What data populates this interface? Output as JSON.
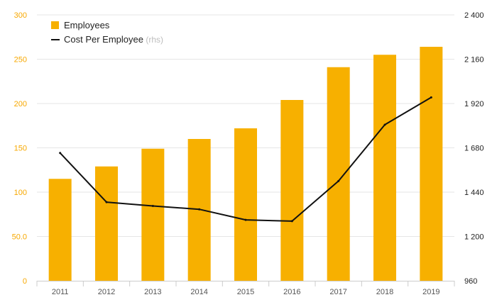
{
  "colors": {
    "bar": "#F7B000",
    "line": "#111111",
    "left_axis_text": "#F7A800",
    "grid": "#e6e6e6",
    "axis": "#cccccc"
  },
  "legend": {
    "items": [
      {
        "label": "Employees",
        "sub": "",
        "kind": "bar"
      },
      {
        "label": "Cost Per Employee",
        "sub": "(rhs)",
        "kind": "line"
      }
    ],
    "placement": "top-left"
  },
  "chart_data": {
    "type": "bar",
    "categories": [
      "2011",
      "2012",
      "2013",
      "2014",
      "2015",
      "2016",
      "2017",
      "2018",
      "2019"
    ],
    "series": [
      {
        "name": "Employees",
        "type": "bar",
        "axis": "left",
        "values": [
          115,
          129,
          149,
          160,
          172,
          204,
          241,
          255,
          264
        ]
      },
      {
        "name": "Cost Per Employee",
        "type": "line",
        "axis": "right",
        "values": [
          1652,
          1386,
          1365,
          1347,
          1290,
          1283,
          1500,
          1805,
          1953
        ]
      }
    ],
    "y_left": {
      "min": 0,
      "max": 300,
      "ticks": [
        0,
        50,
        100,
        150,
        200,
        250,
        300
      ],
      "tick_labels": [
        "0",
        "50.0",
        "100",
        "150",
        "200",
        "250",
        "300"
      ]
    },
    "y_right": {
      "min": 960,
      "max": 2400,
      "ticks": [
        960,
        1200,
        1440,
        1680,
        1920,
        2160,
        2400
      ],
      "tick_labels": [
        "960",
        "1 200",
        "1 440",
        "1 680",
        "1 920",
        "2 160",
        "2 400"
      ]
    },
    "grid": true,
    "title": "",
    "xlabel": "",
    "ylabel": ""
  }
}
